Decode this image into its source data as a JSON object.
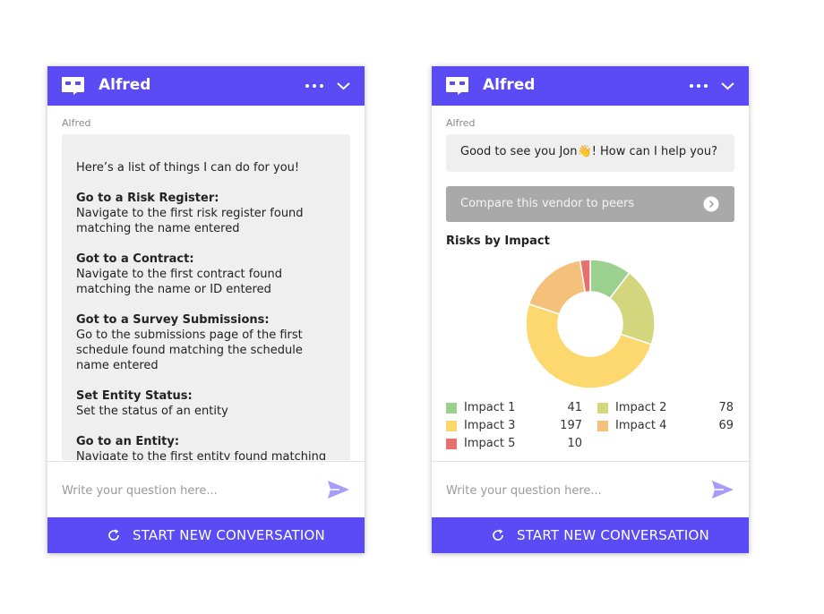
{
  "colors": {
    "brand": "#5a4bf5",
    "bubble": "#efefef",
    "action_button": "#a9a9a9"
  },
  "placeholder": "Write your question here...",
  "footer_label": "START NEW CONVERSATION",
  "panels": [
    {
      "title": "Alfred",
      "sender": "Alfred",
      "intro": "Here’s a list of things I can do for you!",
      "commands": [
        {
          "title": "Go to a Risk Register:",
          "desc": "Navigate to the first risk register found matching the name entered"
        },
        {
          "title": "Got to a Contract:",
          "desc": "Navigate to the first contract found matching the name or ID entered"
        },
        {
          "title": "Got to a Survey Submissions:",
          "desc": "Go to the submissions page of the first schedule found matching the schedule name entered"
        },
        {
          "title": "Set Entity Status:",
          "desc": "Set the status of an entity"
        },
        {
          "title": "Go to an Entity:",
          "desc": "Navigate to the first entity found matching the name or ID entered"
        }
      ]
    },
    {
      "title": "Alfred",
      "sender": "Alfred",
      "greeting_before": "Good to see you Jon",
      "greeting_emoji": "👋",
      "greeting_after": "! How can I help you?",
      "action_label": "Compare this vendor to peers"
    }
  ],
  "chart_data": {
    "type": "pie",
    "title": "Risks by Impact",
    "donut": true,
    "categories": [
      "Impact 1",
      "Impact 2",
      "Impact 3",
      "Impact 4",
      "Impact 5"
    ],
    "values": [
      41,
      78,
      197,
      69,
      10
    ],
    "colors": [
      "#9bd18e",
      "#d4d67d",
      "#fcd86e",
      "#f5c079",
      "#e7706f"
    ]
  }
}
